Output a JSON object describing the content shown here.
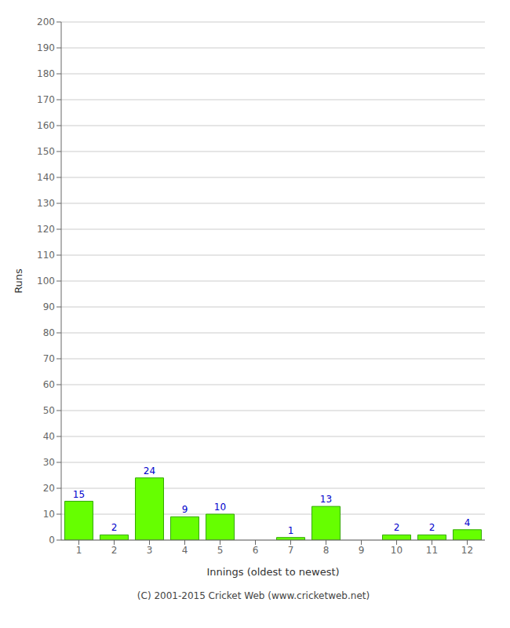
{
  "chart_data": {
    "type": "bar",
    "xlabel": "Innings (oldest to newest)",
    "ylabel": "Runs",
    "categories": [
      1,
      2,
      3,
      4,
      5,
      6,
      7,
      8,
      9,
      10,
      11,
      12
    ],
    "values": [
      15,
      2,
      24,
      9,
      10,
      0,
      1,
      13,
      0,
      2,
      2,
      4
    ],
    "color": "#66ff00",
    "ylim": [
      0,
      200
    ],
    "yticks": [
      0,
      10,
      20,
      30,
      40,
      50,
      60,
      70,
      80,
      90,
      100,
      110,
      120,
      130,
      140,
      150,
      160,
      170,
      180,
      190,
      200
    ],
    "grid": true,
    "data_labels": true,
    "annotations": [
      "(C) 2001-2015 Cricket Web (www.cricketweb.net)"
    ]
  }
}
